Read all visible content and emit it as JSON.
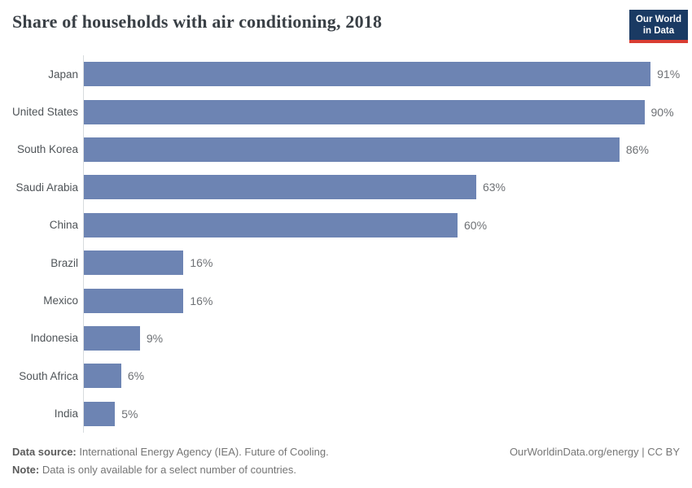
{
  "header": {
    "title": "Share of households with air conditioning, 2018",
    "logo": {
      "line1": "Our World",
      "line2": "in Data"
    }
  },
  "chart_data": {
    "type": "bar",
    "orientation": "horizontal",
    "title": "Share of households with air conditioning, 2018",
    "categories": [
      "Japan",
      "United States",
      "South Korea",
      "Saudi Arabia",
      "China",
      "Brazil",
      "Mexico",
      "Indonesia",
      "South Africa",
      "India"
    ],
    "values": [
      91,
      90,
      86,
      63,
      60,
      16,
      16,
      9,
      6,
      5
    ],
    "value_labels": [
      "91%",
      "90%",
      "86%",
      "63%",
      "60%",
      "16%",
      "16%",
      "9%",
      "6%",
      "5%"
    ],
    "xlabel": "",
    "ylabel": "",
    "xlim": [
      0,
      100
    ],
    "grid": false,
    "legend": "none",
    "bar_color": "#6d84b3"
  },
  "footer": {
    "source_label": "Data source:",
    "source_text": " International Energy Agency (IEA). Future of Cooling.",
    "note_label": "Note:",
    "note_text": " Data is only available for a select number of countries.",
    "link_text": "OurWorldinData.org/energy | CC BY"
  },
  "colors": {
    "bar": "#6d84b3",
    "logo_bg": "#1a3a63",
    "logo_accent": "#d93d32",
    "axis_line": "#d7dbde"
  }
}
